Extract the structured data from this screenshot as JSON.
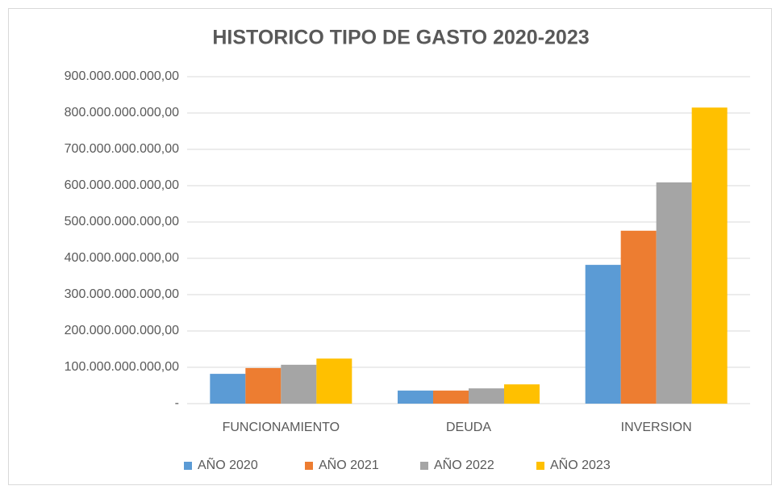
{
  "chart_data": {
    "type": "bar",
    "title": "HISTORICO TIPO DE GASTO 2020-2023",
    "categories": [
      "FUNCIONAMIENTO",
      "DEUDA",
      "INVERSION"
    ],
    "series": [
      {
        "name": "AÑO 2020",
        "color": "#5b9bd5",
        "values": [
          82000000000,
          36000000000,
          382000000000
        ]
      },
      {
        "name": "AÑO 2021",
        "color": "#ed7d31",
        "values": [
          98000000000,
          36000000000,
          476000000000
        ]
      },
      {
        "name": "AÑO 2022",
        "color": "#a5a5a5",
        "values": [
          107000000000,
          42000000000,
          609000000000
        ]
      },
      {
        "name": "AÑO 2023",
        "color": "#ffc000",
        "values": [
          124000000000,
          53000000000,
          815000000000
        ]
      }
    ],
    "ylim": [
      0,
      900000000000
    ],
    "yticks": [
      {
        "value": 0,
        "label": "-"
      },
      {
        "value": 100000000000,
        "label": "100.000.000.000,00"
      },
      {
        "value": 200000000000,
        "label": "200.000.000.000,00"
      },
      {
        "value": 300000000000,
        "label": "300.000.000.000,00"
      },
      {
        "value": 400000000000,
        "label": "400.000.000.000,00"
      },
      {
        "value": 500000000000,
        "label": "500.000.000.000,00"
      },
      {
        "value": 600000000000,
        "label": "600.000.000.000,00"
      },
      {
        "value": 700000000000,
        "label": "700.000.000.000,00"
      },
      {
        "value": 800000000000,
        "label": "800.000.000.000,00"
      },
      {
        "value": 900000000000,
        "label": "900.000.000.000,00"
      }
    ],
    "grid": true,
    "legend": "bottom"
  }
}
